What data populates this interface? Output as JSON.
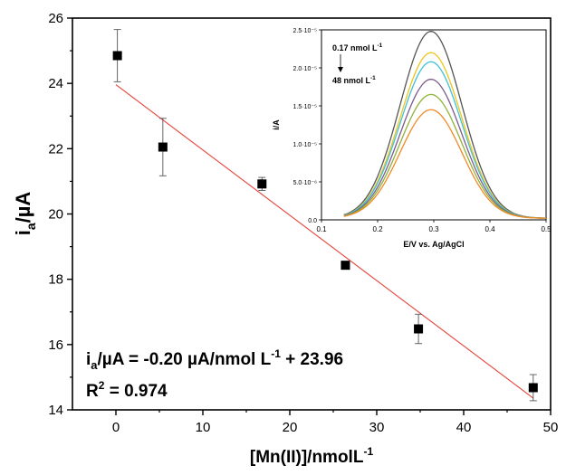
{
  "chart_data": [
    {
      "type": "scatter",
      "xlabel": "[Mn(II)]/nmolL",
      "xlabel_sup": "-1",
      "ylabel_main": "i",
      "ylabel_sub": "a",
      "ylabel_rest": "/µA",
      "xlim": [
        -5,
        50
      ],
      "ylim": [
        14,
        26
      ],
      "xticks": [
        0,
        10,
        20,
        30,
        40,
        50
      ],
      "yticks": [
        14,
        16,
        18,
        20,
        22,
        24,
        26
      ],
      "grid": false,
      "series": [
        {
          "points": [
            {
              "x": 0.17,
              "y": 24.85,
              "err": 0.8
            },
            {
              "x": 5.4,
              "y": 22.05,
              "err": 0.88
            },
            {
              "x": 16.8,
              "y": 20.92,
              "err": 0.2
            },
            {
              "x": 26.4,
              "y": 18.43,
              "err": 0.1
            },
            {
              "x": 34.8,
              "y": 16.48,
              "err": 0.45
            },
            {
              "x": 48.0,
              "y": 14.68,
              "err": 0.4
            }
          ],
          "color": "#000000"
        }
      ],
      "fit_line": {
        "slope": -0.2,
        "intercept": 23.96,
        "x_range": [
          0,
          48
        ],
        "color": "#e8413c"
      },
      "equation": {
        "eq_main": "i",
        "eq_sub": "a",
        "eq_mid": "/µA = -0.20 µA/nmol L",
        "eq_sup": "-1",
        "eq_tail": " + 23.96",
        "r2_main": "R",
        "r2_sup": "2",
        "r2_tail": " = 0.974"
      }
    },
    {
      "type": "line",
      "xlabel": "E/V vs. Ag/AgCl",
      "ylabel": "i/A",
      "xlim": [
        0.1,
        0.5
      ],
      "ylim": [
        0,
        2.5e-05
      ],
      "xticks": [
        "0.1",
        "0.2",
        "0.3",
        "0.4",
        "0.5"
      ],
      "yticks": [
        "0.0",
        "5.0·10⁻⁶",
        "1.0·10⁻⁵",
        "1.5·10⁻⁵",
        "2.0·10⁻⁵",
        "2.5·10⁻⁵"
      ],
      "ytick_values": [
        0,
        5e-06,
        1e-05,
        1.5e-05,
        2e-05,
        2.5e-05
      ],
      "peak_e": 0.295,
      "annotation_top": "0.17 nmol L",
      "annotation_bottom": "48 nmol L",
      "annotation_sup": "-1",
      "series": [
        {
          "peak": 2.48e-05,
          "color": "#555555"
        },
        {
          "peak": 2.2e-05,
          "color": "#f0c419"
        },
        {
          "peak": 2.08e-05,
          "color": "#3fc1d9"
        },
        {
          "peak": 1.85e-05,
          "color": "#7a5c8c"
        },
        {
          "peak": 1.65e-05,
          "color": "#8fb339"
        },
        {
          "peak": 1.45e-05,
          "color": "#f08a24"
        }
      ]
    }
  ]
}
